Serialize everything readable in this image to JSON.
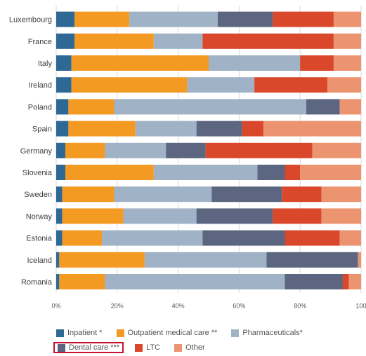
{
  "chart_data": {
    "type": "bar",
    "orientation": "horizontal",
    "stacked": true,
    "percent": true,
    "categories": [
      "Luxembourg",
      "France",
      "Italy",
      "Ireland",
      "Poland",
      "Spain",
      "Germany",
      "Slovenia",
      "Sweden",
      "Norway",
      "Estonia",
      "Iceland",
      "Romania"
    ],
    "series": [
      {
        "name": "Inpatient *",
        "color": "#2e6894",
        "values": [
          6,
          6,
          5,
          5,
          4,
          4,
          3,
          3,
          2,
          2,
          2,
          1,
          1
        ]
      },
      {
        "name": "Outpatient medical care **",
        "color": "#f39a22",
        "values": [
          18,
          26,
          45,
          38,
          15,
          22,
          13,
          29,
          17,
          20,
          13,
          28,
          15
        ]
      },
      {
        "name": "Pharmaceuticals*",
        "color": "#9fb2c6",
        "values": [
          29,
          16,
          30,
          22,
          63,
          20,
          20,
          34,
          32,
          24,
          33,
          40,
          59
        ]
      },
      {
        "name": "Dental care ***",
        "color": "#5c6680",
        "values": [
          18,
          0,
          0,
          0,
          11,
          15,
          13,
          9,
          23,
          25,
          27,
          30,
          19
        ]
      },
      {
        "name": "LTC",
        "color": "#d9482b",
        "values": [
          20,
          43,
          11,
          24,
          0,
          7,
          35,
          5,
          13,
          16,
          18,
          0,
          2
        ]
      },
      {
        "name": "Other",
        "color": "#ec9370",
        "values": [
          9,
          9,
          9,
          11,
          7,
          32,
          16,
          20,
          13,
          13,
          7,
          1,
          4
        ]
      }
    ],
    "x_ticks": [
      "0%",
      "20%",
      "40%",
      "60%",
      "80%",
      "100"
    ],
    "xlim": [
      0,
      100
    ],
    "grid": "vertical",
    "legend_position": "bottom",
    "legend_highlight": "Dental care ***"
  }
}
